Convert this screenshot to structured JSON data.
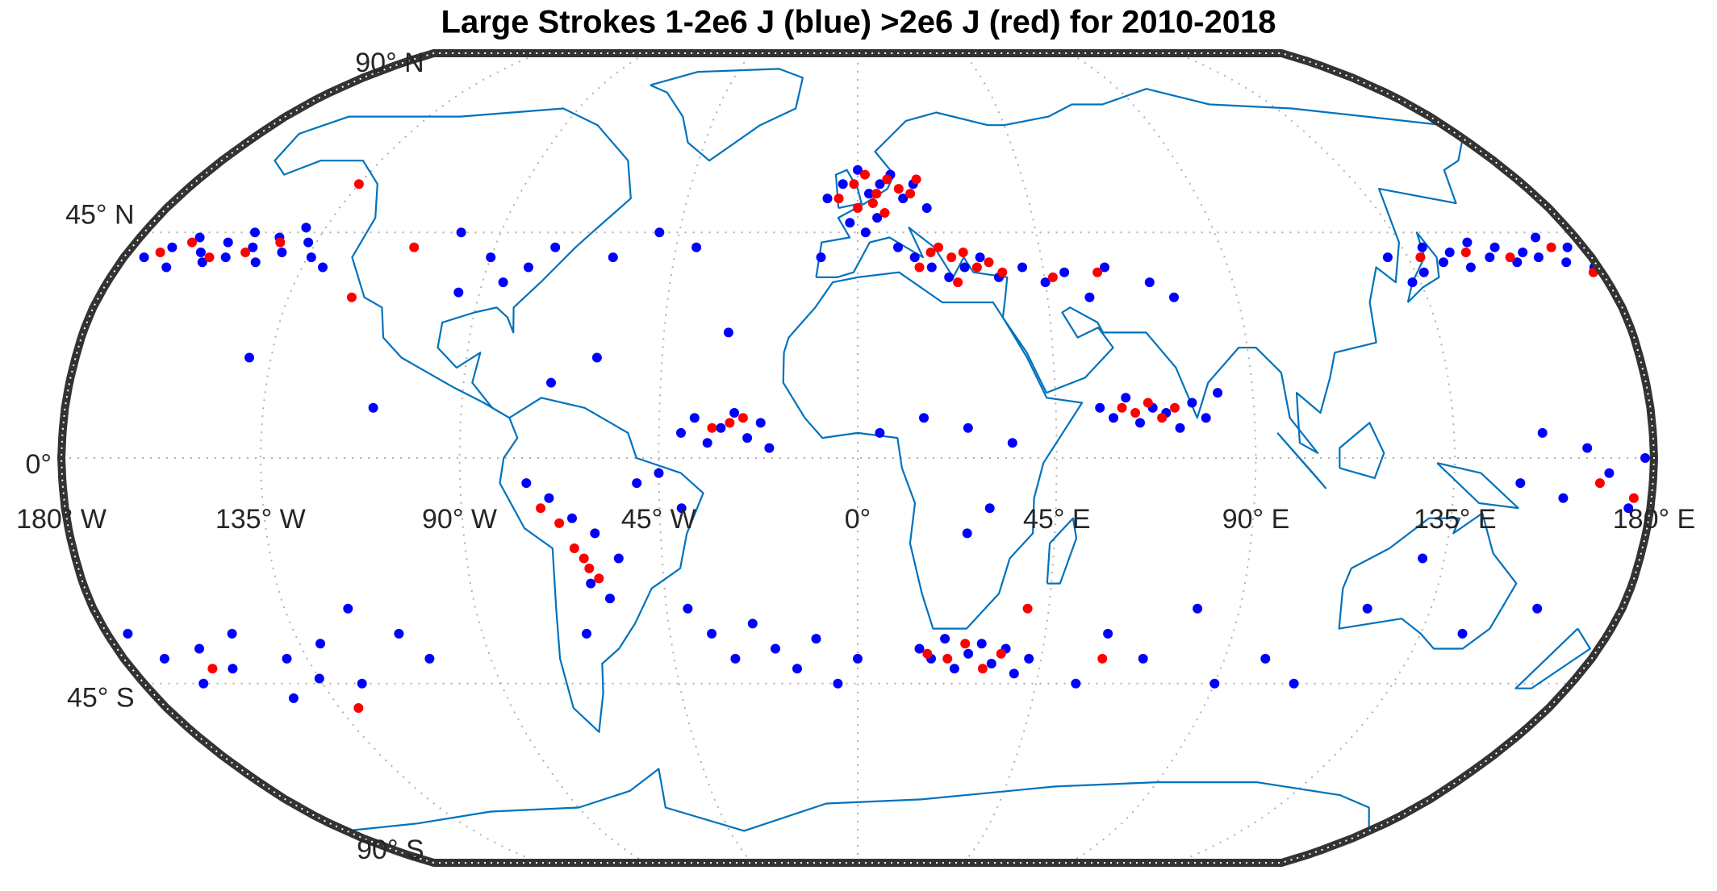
{
  "chart_data": {
    "type": "scatter",
    "projection": "robinson",
    "title": "Large Strokes 1-2e6 J (blue) >2e6 J (red) for 2010-2018",
    "xlim": [
      -180,
      180
    ],
    "ylim": [
      -90,
      90
    ],
    "xticks": [
      {
        "value": -180,
        "label": "180° W"
      },
      {
        "value": -135,
        "label": "135° W"
      },
      {
        "value": -90,
        "label": "90° W"
      },
      {
        "value": -45,
        "label": "45° W"
      },
      {
        "value": 0,
        "label": "0°"
      },
      {
        "value": 45,
        "label": "45° E"
      },
      {
        "value": 90,
        "label": "90° E"
      },
      {
        "value": 135,
        "label": "135° E"
      },
      {
        "value": 180,
        "label": "180° E"
      }
    ],
    "yticks": [
      {
        "value": -90,
        "label": "90° S"
      },
      {
        "value": -45,
        "label": "45° S"
      },
      {
        "value": 0,
        "label": "0°"
      },
      {
        "value": 45,
        "label": "45° N"
      },
      {
        "value": 90,
        "label": "90° N"
      }
    ],
    "grid": true,
    "series": [
      {
        "color": "#0000ff",
        "x": [
          -175,
          -170,
          -168,
          -165,
          -162,
          -160,
          -157,
          -155,
          -152,
          -150,
          -147,
          -145,
          -142,
          -140,
          -137,
          -134,
          -130,
          130,
          133,
          137,
          140,
          143,
          146,
          149,
          152,
          155,
          158,
          161,
          164,
          167,
          170,
          173,
          176,
          179,
          -8,
          -4,
          0,
          3,
          6,
          9,
          12,
          15,
          18,
          -2,
          2,
          5,
          10,
          14,
          18,
          22,
          26,
          30,
          34,
          -9,
          40,
          45,
          50,
          55,
          60,
          70,
          75,
          -90,
          -85,
          -80,
          -95,
          -100,
          -75,
          -60,
          -50,
          -40,
          -60,
          -70,
          -140,
          -110,
          -30,
          -40,
          -37,
          -34,
          -31,
          -28,
          -25,
          -22,
          -20,
          5,
          15,
          25,
          35,
          30,
          25,
          55,
          58,
          61,
          64,
          67,
          70,
          73,
          76,
          79,
          82,
          -75,
          -70,
          -65,
          -60,
          -55,
          -50,
          -45,
          -40,
          -62,
          -58,
          -65,
          -40,
          -35,
          -30,
          -25,
          -20,
          -15,
          -10,
          -5,
          0,
          15,
          18,
          21,
          24,
          27,
          30,
          33,
          36,
          39,
          42,
          55,
          60,
          70,
          80,
          90,
          100,
          110,
          120,
          130,
          145,
          160,
          150,
          155,
          160,
          165,
          170,
          175,
          178,
          -175,
          -170,
          -165,
          -160,
          -155,
          -150,
          -145,
          -140,
          -135,
          -130,
          -125,
          -120,
          -110,
          -105
        ],
        "y": [
          40,
          42,
          38,
          44,
          41,
          39,
          43,
          40,
          45,
          42,
          39,
          44,
          41,
          46,
          43,
          40,
          38,
          40,
          35,
          37,
          42,
          39,
          41,
          38,
          43,
          40,
          42,
          39,
          41,
          40,
          44,
          39,
          42,
          38,
          52,
          55,
          58,
          53,
          55,
          57,
          52,
          55,
          50,
          47,
          45,
          48,
          42,
          40,
          38,
          36,
          38,
          40,
          36,
          40,
          38,
          35,
          37,
          32,
          38,
          35,
          32,
          40,
          35,
          38,
          33,
          45,
          42,
          40,
          45,
          42,
          20,
          15,
          20,
          10,
          25,
          5,
          8,
          3,
          6,
          9,
          4,
          7,
          2,
          5,
          8,
          6,
          3,
          -10,
          -15,
          10,
          8,
          12,
          7,
          10,
          9,
          6,
          11,
          8,
          13,
          -5,
          -8,
          -12,
          -15,
          -20,
          -5,
          -3,
          -10,
          -25,
          -28,
          -35,
          -30,
          -35,
          -40,
          -33,
          -38,
          -42,
          -36,
          -45,
          -40,
          -38,
          -40,
          -36,
          -42,
          -39,
          -37,
          -41,
          -38,
          -43,
          -40,
          -45,
          -35,
          -40,
          -30,
          -45,
          -40,
          -45,
          -30,
          -20,
          -35,
          -30,
          -5,
          5,
          -8,
          2,
          -3,
          -10,
          0,
          -35,
          -40,
          -45,
          -38,
          -42,
          -35,
          -48,
          -40,
          -44,
          -37,
          -45,
          -30,
          -35,
          -40
        ]
      },
      {
        "color": "#ff0000",
        "x": [
          -172,
          -166,
          -159,
          -151,
          -144,
          138,
          150,
          160,
          172,
          178,
          -5,
          -1,
          2,
          5,
          8,
          11,
          14,
          0,
          4,
          7,
          16,
          20,
          23,
          26,
          29,
          15,
          18,
          32,
          35,
          24,
          47,
          58,
          60,
          63,
          66,
          69,
          72,
          -33,
          -29,
          -26,
          -72,
          -68,
          -65,
          -62,
          -60,
          -63,
          17,
          22,
          26,
          31,
          35,
          -160,
          -130,
          168,
          176,
          -120,
          -135,
          -110,
          40,
          60
        ],
        "y": [
          41,
          43,
          40,
          41,
          43,
          40,
          41,
          40,
          42,
          37,
          52,
          55,
          57,
          53,
          56,
          54,
          53,
          50,
          51,
          49,
          56,
          42,
          40,
          41,
          38,
          38,
          41,
          39,
          37,
          35,
          36,
          37,
          10,
          9,
          11,
          8,
          10,
          6,
          7,
          8,
          -10,
          -13,
          -18,
          -22,
          -24,
          -20,
          -39,
          -40,
          -37,
          -42,
          -39,
          -42,
          -50,
          -5,
          -8,
          32,
          55,
          42,
          -30,
          -40
        ]
      }
    ]
  }
}
